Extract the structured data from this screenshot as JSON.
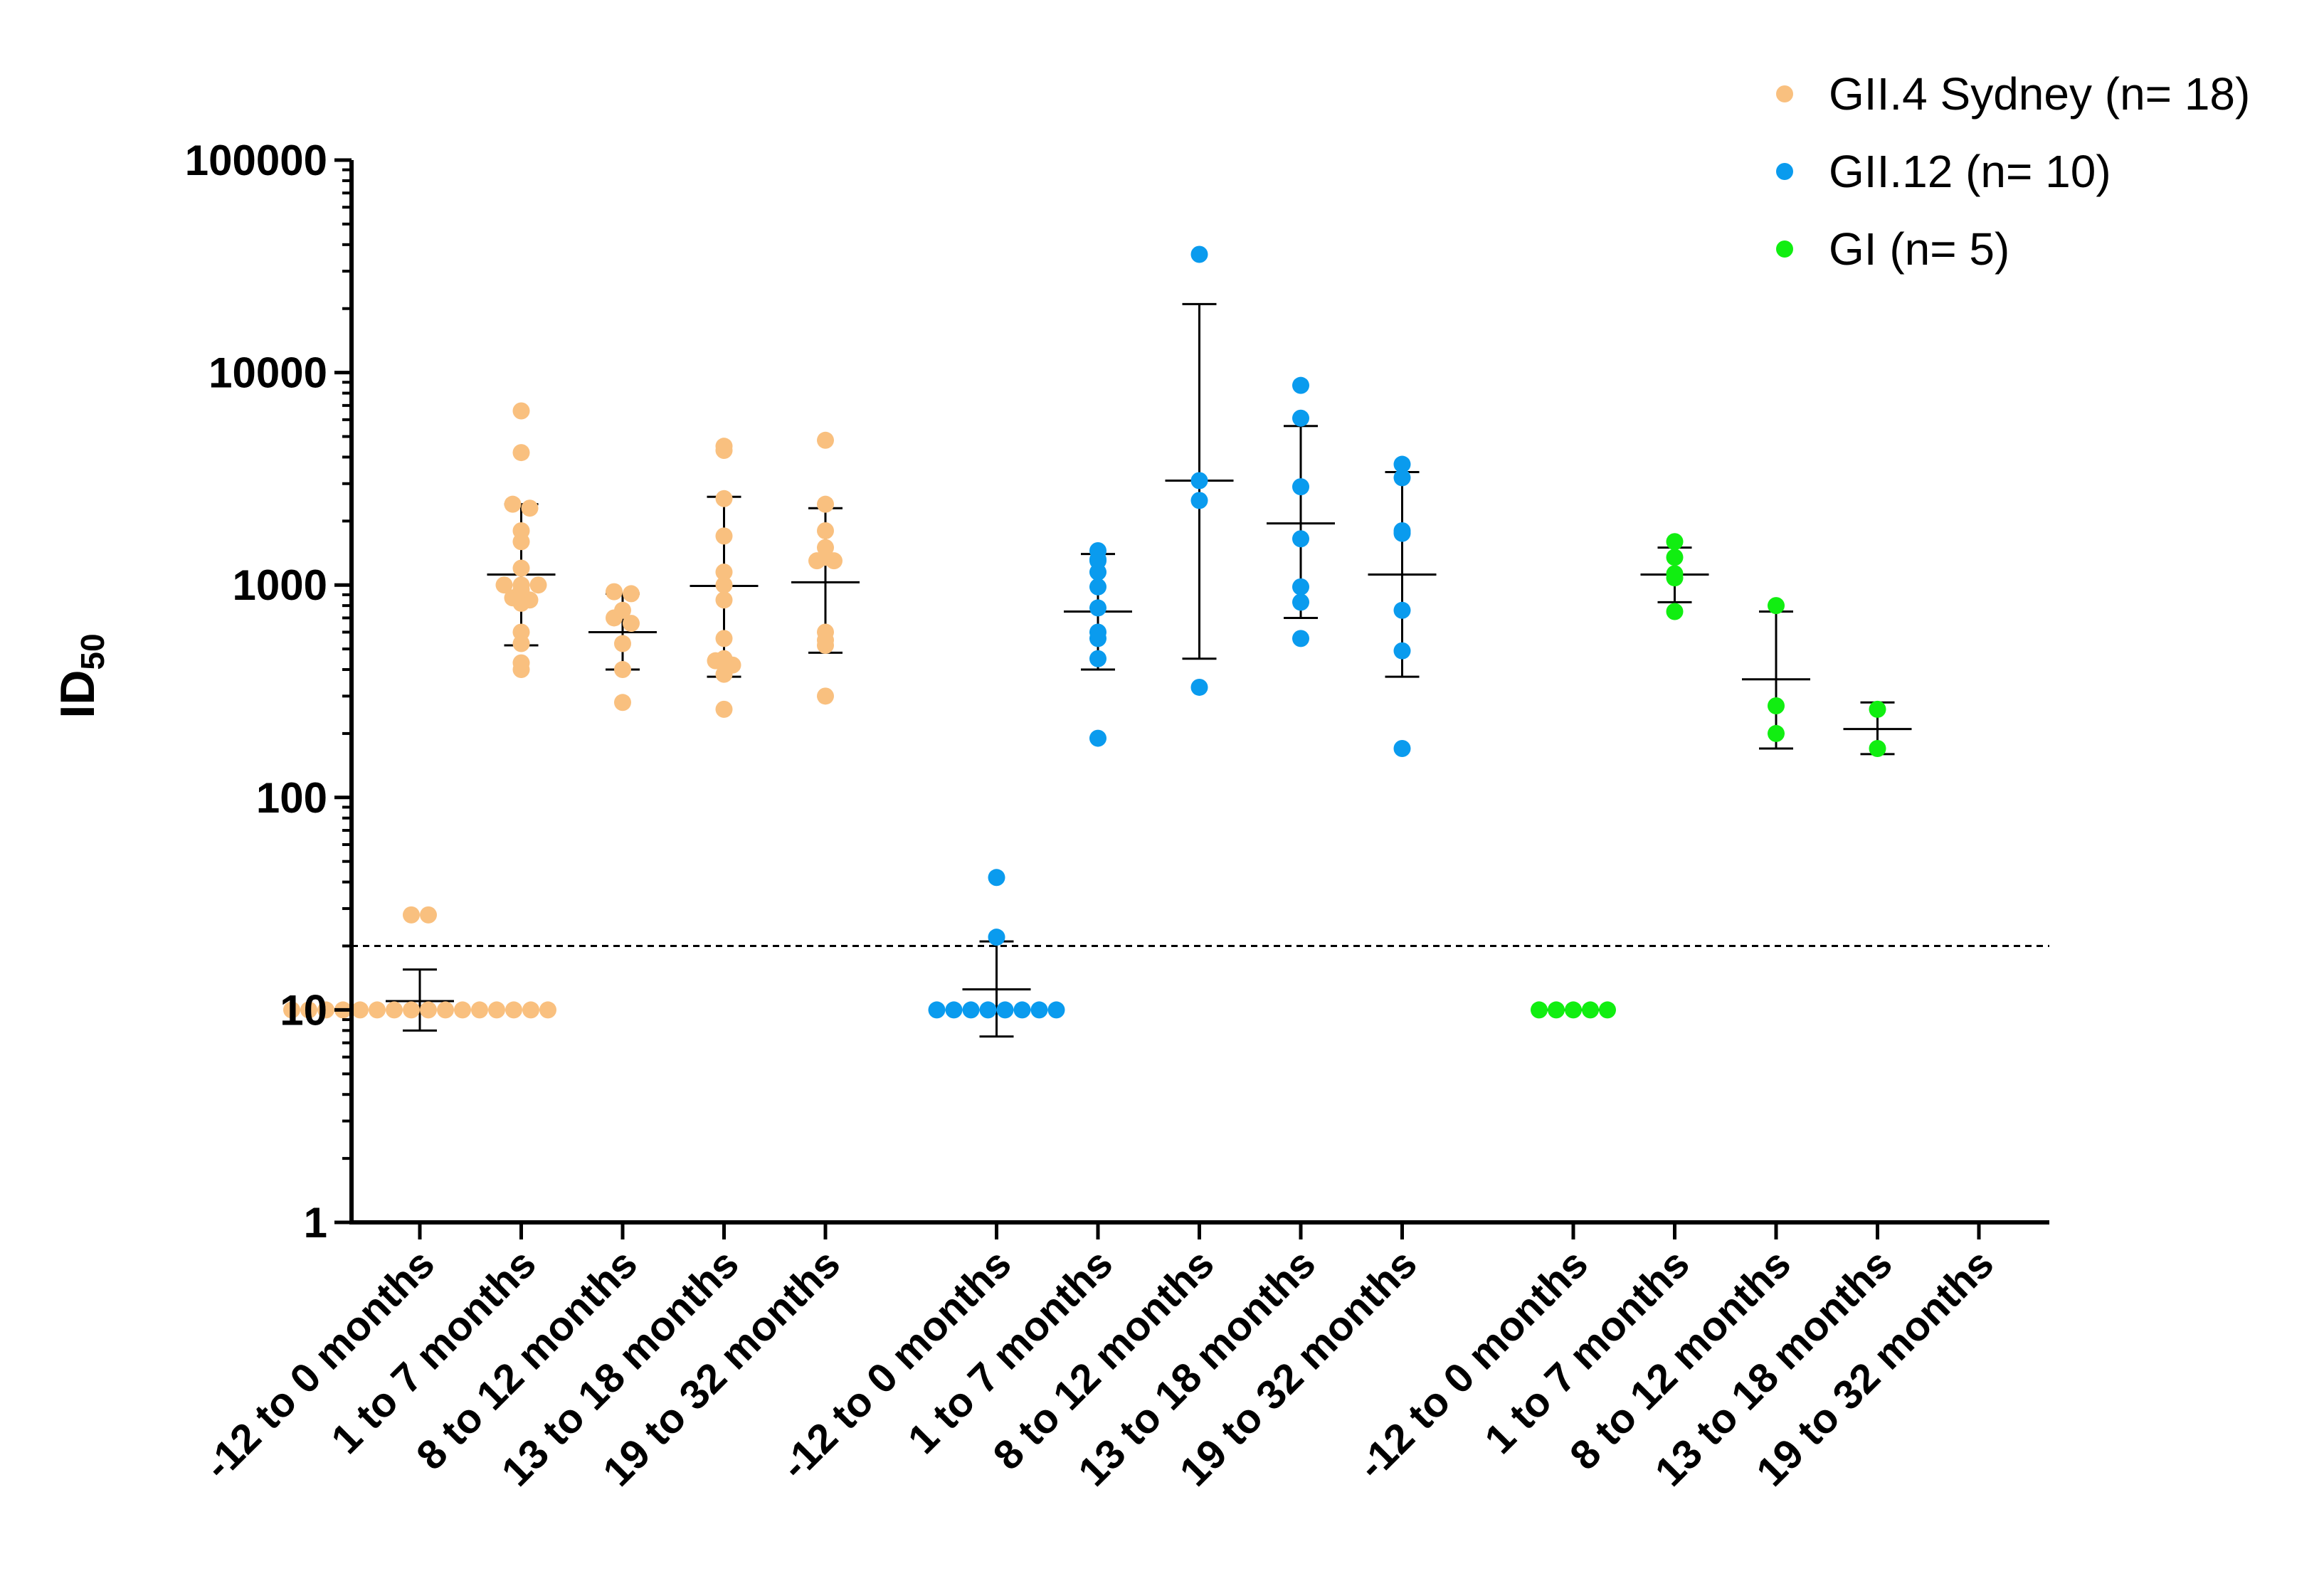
{
  "chart_data": {
    "type": "scatter",
    "title": "",
    "xlabel": "",
    "ylabel": "ID",
    "ylabel_subscript": "50",
    "yscale": "log",
    "ylim": [
      1,
      100000
    ],
    "yticks": [
      "1",
      "10",
      "100",
      "1000",
      "10000",
      "100000"
    ],
    "threshold": 20,
    "grid": false,
    "legend_position": "top-right",
    "legend": [
      {
        "key": "sydney",
        "label": "GII.4 Sydney (n= 18)",
        "color": "#F9C07F"
      },
      {
        "key": "gii12",
        "label": "GII.12 (n= 10)",
        "color": "#0A9BEE"
      },
      {
        "key": "gi",
        "label": "GI (n= 5)",
        "color": "#11EE11"
      }
    ],
    "categories": [
      "-12 to 0 months",
      "1 to 7 months",
      "8 to 12 months",
      "13 to 18 months",
      "19 to 32 months",
      "-12 to 0 months",
      "1 to 7 months",
      "8 to 12 months",
      "13 to 18 months",
      "19 to 32 months",
      "-12 to 0 months",
      "1 to 7 months",
      "8 to 12 months",
      "13 to 18 months",
      "19 to 32 months"
    ],
    "groups": [
      {
        "series": "sydney",
        "cats": [
          {
            "points": [
              28,
              28,
              10,
              10,
              10,
              10,
              10,
              10,
              10,
              10,
              10,
              10,
              10,
              10,
              10,
              10,
              10,
              10
            ],
            "mean": 11,
            "err": [
              8,
              15.5
            ]
          },
          {
            "points": [
              6600,
              4200,
              2400,
              2300,
              1800,
              1600,
              1200,
              1000,
              1000,
              1000,
              950,
              870,
              850,
              820,
              600,
              530,
              430,
              400
            ],
            "mean": 1120,
            "err": [
              520,
              2400
            ]
          },
          {
            "points": [
              930,
              910,
              760,
              700,
              660,
              530,
              400,
              280
            ],
            "mean": 600,
            "err": [
              400,
              910
            ]
          },
          {
            "points": [
              4500,
              4300,
              2550,
              1700,
              1150,
              1000,
              850,
              560,
              450,
              440,
              420,
              380,
              260
            ],
            "mean": 990,
            "err": [
              370,
              2600
            ]
          },
          {
            "points": [
              4800,
              2400,
              1800,
              1500,
              1350,
              1300,
              1300,
              600,
              550,
              520,
              300
            ],
            "mean": 1030,
            "err": [
              480,
              2300
            ]
          }
        ]
      },
      {
        "series": "gii12",
        "cats": [
          {
            "points": [
              42,
              22,
              10,
              10,
              10,
              10,
              10,
              10,
              10,
              10
            ],
            "mean": 12.5,
            "err": [
              7.5,
              21
            ]
          },
          {
            "points": [
              1450,
              1320,
              1300,
              1150,
              980,
              780,
              600,
              560,
              450,
              190
            ],
            "mean": 750,
            "err": [
              400,
              1400
            ]
          },
          {
            "points": [
              36000,
              3100,
              2500,
              330
            ],
            "mean": 3100,
            "err": [
              450,
              21000
            ]
          },
          {
            "points": [
              8700,
              6100,
              2900,
              1650,
              980,
              830,
              560
            ],
            "mean": 1950,
            "err": [
              700,
              5600
            ]
          },
          {
            "points": [
              3700,
              3200,
              1800,
              1750,
              760,
              490,
              170
            ],
            "mean": 1120,
            "err": [
              370,
              3400
            ]
          }
        ]
      },
      {
        "series": "gi",
        "cats": [
          {
            "points": [
              10,
              10,
              10,
              10,
              10
            ],
            "mean": 10,
            "err": [
              10,
              10
            ]
          },
          {
            "points": [
              1600,
              1350,
              1130,
              1080,
              750
            ],
            "mean": 1120,
            "err": [
              830,
              1500
            ]
          },
          {
            "points": [
              800,
              270,
              200
            ],
            "mean": 360,
            "err": [
              170,
              750
            ]
          },
          {
            "points": [
              260,
              170
            ],
            "mean": 210,
            "err": [
              160,
              280
            ]
          },
          {
            "points": [],
            "mean": null,
            "err": null
          }
        ]
      }
    ]
  }
}
